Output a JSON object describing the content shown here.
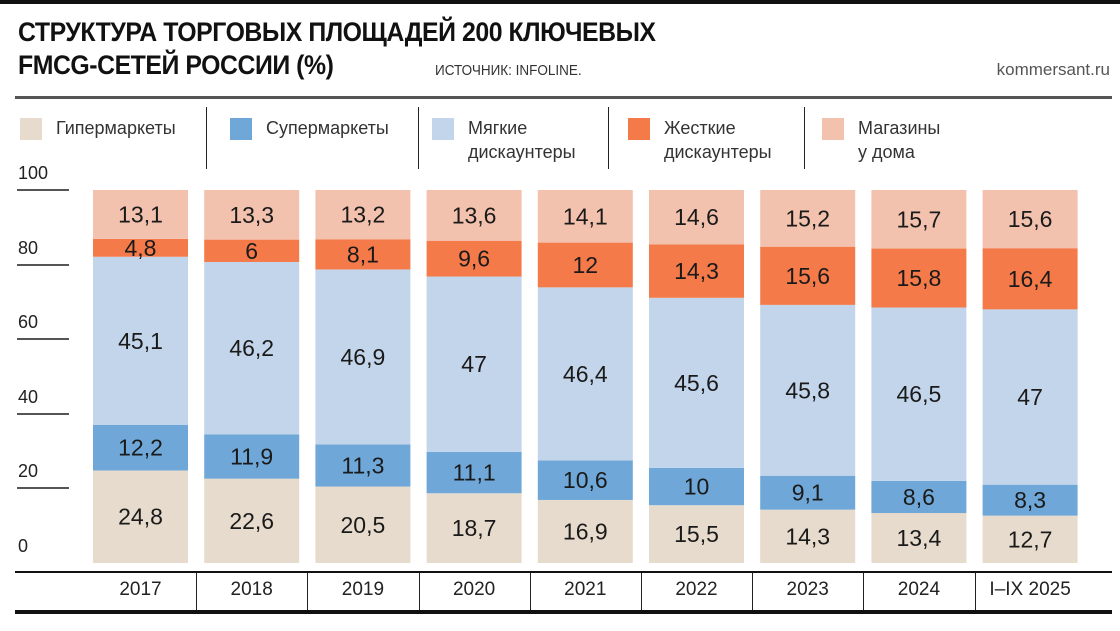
{
  "chart_data": {
    "type": "bar",
    "stacked": true,
    "title": "СТРУКТУРА ТОРГОВЫХ ПЛОЩАДЕЙ 200 КЛЮЧЕВЫХ FMCG-СЕТЕЙ РОССИИ (%)",
    "title_lines": [
      "СТРУКТУРА ТОРГОВЫХ ПЛОЩАДЕЙ 200 КЛЮЧЕВЫХ",
      "FMCG-СЕТЕЙ РОССИИ (%)"
    ],
    "source": "ИСТОЧНИК: INFOLINE.",
    "site": "kommersant.ru",
    "categories": [
      "2017",
      "2018",
      "2019",
      "2020",
      "2021",
      "2022",
      "2023",
      "2024",
      "I–IX 2025"
    ],
    "ylim": [
      0,
      100
    ],
    "yticks": [
      "0",
      "20",
      "40",
      "60",
      "80",
      "100"
    ],
    "legend_placement": "top",
    "series": [
      {
        "name": "Гипермаркеты",
        "color": "#e6dbcc",
        "values": [
          24.8,
          22.6,
          20.5,
          18.7,
          16.9,
          15.5,
          14.3,
          13.4,
          12.7
        ],
        "labels": [
          "24,8",
          "22,6",
          "20,5",
          "18,7",
          "16,9",
          "15,5",
          "14,3",
          "13,4",
          "12,7"
        ]
      },
      {
        "name": "Супермаркеты",
        "color": "#6fa8d8",
        "values": [
          12.2,
          11.9,
          11.3,
          11.1,
          10.6,
          10,
          9.1,
          8.6,
          8.3
        ],
        "labels": [
          "12,2",
          "11,9",
          "11,3",
          "11,1",
          "10,6",
          "10",
          "9,1",
          "8,6",
          "8,3"
        ]
      },
      {
        "name": "Мягкие\nдискаунтеры",
        "color": "#c3d5ea",
        "values": [
          45.1,
          46.2,
          46.9,
          47,
          46.4,
          45.6,
          45.8,
          46.5,
          47
        ],
        "labels": [
          "45,1",
          "46,2",
          "46,9",
          "47",
          "46,4",
          "45,6",
          "45,8",
          "46,5",
          "47"
        ]
      },
      {
        "name": "Жесткие\nдискаунтеры",
        "color": "#f47a4a",
        "values": [
          4.8,
          6,
          8.1,
          9.6,
          12,
          14.3,
          15.6,
          15.8,
          16.4
        ],
        "labels": [
          "4,8",
          "6",
          "8,1",
          "9,6",
          "12",
          "14,3",
          "15,6",
          "15,8",
          "16,4"
        ]
      },
      {
        "name": "Магазины\nу дома",
        "color": "#f3c2ae",
        "values": [
          13.1,
          13.3,
          13.2,
          13.6,
          14.1,
          14.6,
          15.2,
          15.7,
          15.6
        ],
        "labels": [
          "13,1",
          "13,3",
          "13,2",
          "13,6",
          "14,1",
          "14,6",
          "15,2",
          "15,7",
          "15,6"
        ]
      }
    ]
  }
}
